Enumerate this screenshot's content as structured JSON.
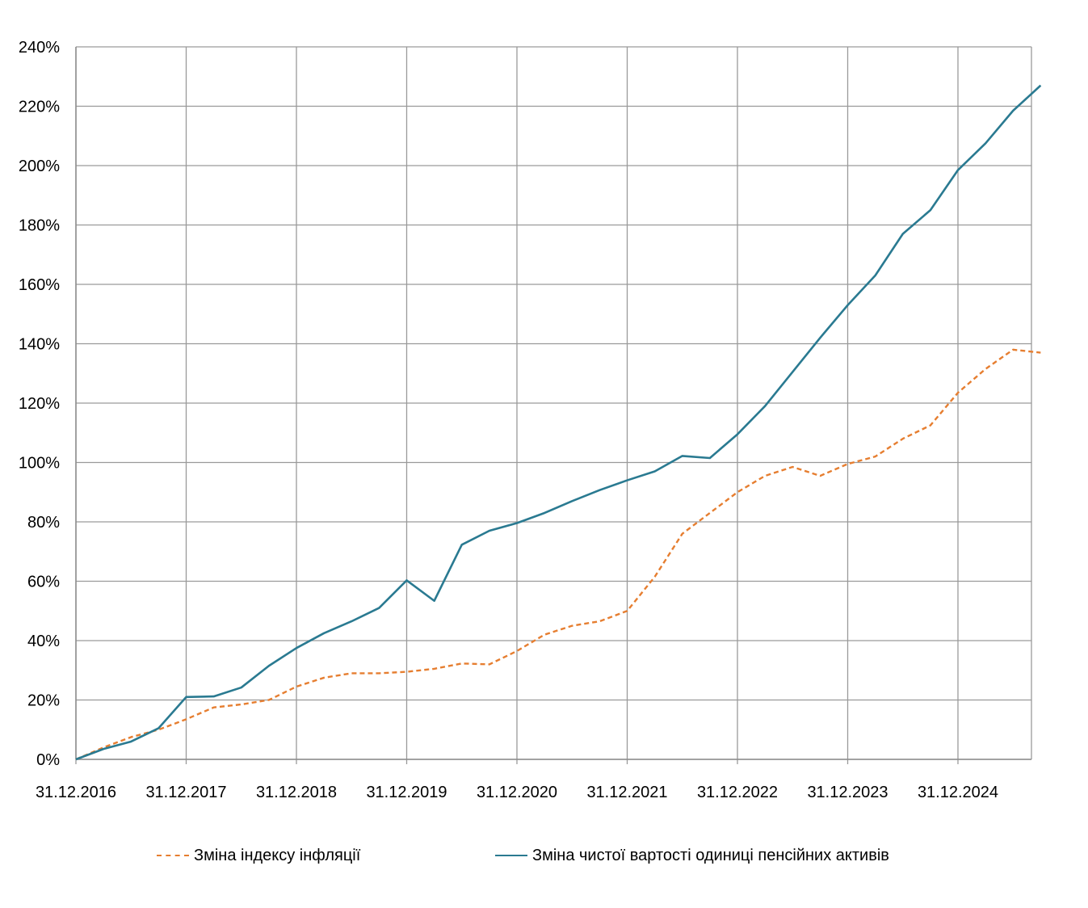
{
  "chart_data": {
    "type": "line",
    "title": "",
    "xlabel": "",
    "ylabel": "",
    "ylim": [
      0,
      240
    ],
    "y_ticks": [
      0,
      20,
      40,
      60,
      80,
      100,
      120,
      140,
      160,
      180,
      200,
      220,
      240
    ],
    "y_tick_labels": [
      "0%",
      "20%",
      "40%",
      "60%",
      "80%",
      "100%",
      "120%",
      "140%",
      "160%",
      "180%",
      "200%",
      "220%",
      "240%"
    ],
    "x_tick_labels": [
      "31.12.2016",
      "31.12.2017",
      "31.12.2018",
      "31.12.2019",
      "31.12.2020",
      "31.12.2021",
      "31.12.2022",
      "31.12.2023",
      "31.12.2024"
    ],
    "x_period": "quarterly",
    "grid": true,
    "legend_position": "bottom",
    "series": [
      {
        "name": "Зміна індексу інфляції",
        "color": "#E67E30",
        "style": "dashed",
        "values": [
          0,
          4,
          7.5,
          10,
          13.5,
          17.5,
          18.5,
          20,
          24.5,
          27.5,
          29,
          29,
          29.5,
          30.5,
          32.3,
          32,
          36.5,
          42,
          45,
          46.5,
          50,
          61.5,
          76,
          83,
          90,
          95.5,
          98.5,
          95.5,
          99.5,
          102,
          108,
          112.5,
          123.5,
          131.5,
          138,
          137
        ]
      },
      {
        "name": "Зміна чистої вартості одиниці пенсійних активів",
        "color": "#2A7A91",
        "style": "solid",
        "values": [
          0,
          3.5,
          6,
          10.5,
          21,
          21.2,
          24.2,
          31.5,
          37.5,
          42.5,
          46.5,
          51,
          60.3,
          53.4,
          72.3,
          77,
          79.6,
          83,
          87,
          90.7,
          94,
          97,
          102.2,
          101.5,
          109.5,
          119,
          130.5,
          142,
          153,
          163,
          177,
          185,
          198.5,
          207.5,
          218.5,
          227
        ]
      }
    ]
  }
}
